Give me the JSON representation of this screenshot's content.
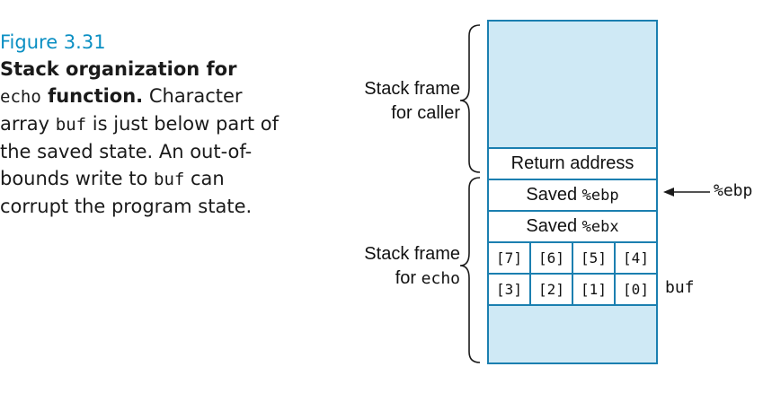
{
  "caption": {
    "figure_label": "Figure 3.31",
    "bold_line1": "Stack organization for",
    "bold_code": "echo",
    "bold_word": "function.",
    "text1": "Character array",
    "code1": "buf",
    "text2": "is just below part of the saved state. An out-of-bounds write to",
    "code2": "buf",
    "text3": "can corrupt the program state."
  },
  "stack": {
    "caller_label_1": "Stack frame",
    "caller_label_2": "for caller",
    "echo_label_1": "Stack frame",
    "echo_label_2": "for",
    "echo_code": "echo",
    "return_address": "Return address",
    "saved_ebp_text": "Saved",
    "saved_ebp_reg": "%ebp",
    "saved_ebx_text": "Saved",
    "saved_ebx_reg": "%ebx",
    "bytes_row_top": [
      "[7]",
      "[6]",
      "[5]",
      "[4]"
    ],
    "bytes_row_bottom": [
      "[3]",
      "[2]",
      "[1]",
      "[0]"
    ],
    "ebp_pointer": "%ebp",
    "buf_label": "buf"
  },
  "colors": {
    "accent": "#0b8fc3",
    "stack_fill": "#cfe9f5",
    "stack_border": "#1b7fb0"
  }
}
